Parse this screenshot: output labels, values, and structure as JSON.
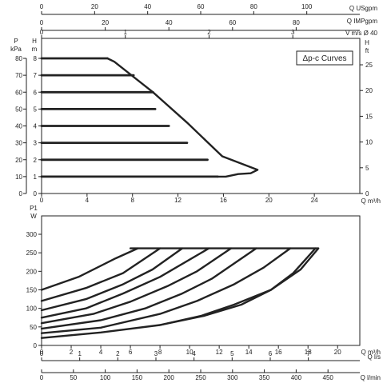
{
  "chart_data": [
    {
      "type": "line",
      "title": "",
      "legend_box": "Δp-c Curves",
      "legend_placement": "top-right",
      "grid": false,
      "x_primary": {
        "label": "Q m³/h",
        "range": [
          0,
          28
        ],
        "ticks": [
          0,
          4,
          8,
          12,
          16,
          20,
          24
        ]
      },
      "x_top_1": {
        "label": "Q USgpm",
        "range": [
          0,
          120
        ],
        "ticks": [
          0,
          20,
          40,
          60,
          80,
          100
        ]
      },
      "x_top_2": {
        "label": "Q IMPgpm",
        "range": [
          0,
          100
        ],
        "ticks": [
          0,
          20,
          40,
          60,
          80
        ]
      },
      "x_top_3": {
        "label": "V m/s Ø 40",
        "range": [
          0,
          3.8
        ],
        "ticks": [
          0,
          1,
          2,
          3
        ]
      },
      "y_left": {
        "label_top": "P",
        "label_unit": "kPa",
        "range": [
          0,
          80
        ],
        "ticks": [
          0,
          10,
          20,
          30,
          40,
          50,
          60,
          70,
          80
        ]
      },
      "y_mid": {
        "label": "H m",
        "range": [
          0,
          8
        ],
        "ticks": [
          0,
          1,
          2,
          3,
          4,
          5,
          6,
          7,
          8
        ]
      },
      "y_right": {
        "label": "H ft",
        "range": [
          0,
          26.2
        ],
        "ticks": [
          0,
          5,
          10,
          15,
          20,
          25
        ]
      },
      "series": [
        {
          "values": [
            [
              0,
              1
            ],
            [
              15.5,
              1
            ]
          ]
        },
        {
          "values": [
            [
              0,
              2
            ],
            [
              14.6,
              2
            ]
          ]
        },
        {
          "values": [
            [
              0,
              3
            ],
            [
              12.8,
              3
            ]
          ]
        },
        {
          "values": [
            [
              0,
              4
            ],
            [
              11.2,
              4
            ]
          ]
        },
        {
          "values": [
            [
              0,
              5
            ],
            [
              10,
              5
            ]
          ]
        },
        {
          "values": [
            [
              0,
              6
            ],
            [
              9.8,
              6
            ]
          ]
        },
        {
          "values": [
            [
              0,
              7
            ],
            [
              8.1,
              7
            ]
          ]
        },
        {
          "values": [
            [
              0,
              8
            ],
            [
              5.8,
              8
            ]
          ]
        }
      ],
      "max_curve": [
        [
          5.8,
          8
        ],
        [
          6.4,
          7.8
        ],
        [
          9.8,
          6
        ],
        [
          12.8,
          4.2
        ],
        [
          15.9,
          2.2
        ],
        [
          19.0,
          1.4
        ],
        [
          18.4,
          1.2
        ],
        [
          17.3,
          1.15
        ],
        [
          16.2,
          1.0
        ],
        [
          15.5,
          1
        ]
      ]
    },
    {
      "type": "line",
      "title": "",
      "grid": false,
      "x_primary": {
        "label": "Q m³/h",
        "range": [
          0,
          21.5
        ],
        "ticks": [
          0,
          2,
          4,
          6,
          8,
          10,
          12,
          14,
          16,
          18,
          20
        ]
      },
      "x_bottom_2": {
        "label": "Q l/s",
        "range": [
          0,
          8.35
        ],
        "ticks": [
          0,
          1,
          2,
          3,
          4,
          5,
          6,
          7
        ]
      },
      "x_bottom_3": {
        "label": "Q l/min",
        "range": [
          0,
          500
        ],
        "ticks": [
          0,
          50,
          100,
          150,
          200,
          250,
          300,
          350,
          400,
          450
        ]
      },
      "y_left": {
        "label": "P1 W",
        "range": [
          0,
          320
        ],
        "ticks": [
          0,
          50,
          100,
          150,
          200,
          250,
          300
        ]
      },
      "series": [
        {
          "values": [
            [
              0,
              20
            ],
            [
              4,
              35
            ],
            [
              8,
              55
            ],
            [
              11,
              80
            ],
            [
              13.5,
              110
            ],
            [
              15.5,
              150
            ],
            [
              17,
              195
            ],
            [
              18.5,
              262
            ]
          ]
        },
        {
          "values": [
            [
              0,
              33
            ],
            [
              4,
              48
            ],
            [
              8,
              85
            ],
            [
              10.5,
              120
            ],
            [
              13,
              165
            ],
            [
              15,
              210
            ],
            [
              16.8,
              262
            ]
          ]
        },
        {
          "values": [
            [
              0,
              45
            ],
            [
              4,
              68
            ],
            [
              7,
              100
            ],
            [
              9.5,
              140
            ],
            [
              11.5,
              180
            ],
            [
              14.5,
              262
            ]
          ]
        },
        {
          "values": [
            [
              0,
              60
            ],
            [
              3.5,
              85
            ],
            [
              6,
              118
            ],
            [
              8.5,
              160
            ],
            [
              10.5,
              200
            ],
            [
              12.8,
              262
            ]
          ]
        },
        {
          "values": [
            [
              0,
              75
            ],
            [
              3,
              100
            ],
            [
              5.5,
              140
            ],
            [
              8,
              185
            ],
            [
              11.3,
              262
            ]
          ]
        },
        {
          "values": [
            [
              0,
              95
            ],
            [
              3,
              125
            ],
            [
              5.5,
              165
            ],
            [
              7.5,
              205
            ],
            [
              9.5,
              262
            ]
          ]
        },
        {
          "values": [
            [
              0,
              120
            ],
            [
              3,
              155
            ],
            [
              5.5,
              195
            ],
            [
              8,
              262
            ]
          ]
        },
        {
          "values": [
            [
              0,
              150
            ],
            [
              2.5,
              185
            ],
            [
              5,
              235
            ],
            [
              6.5,
              262
            ]
          ]
        }
      ],
      "max_curve": [
        [
          6,
          262
        ],
        [
          18.7,
          262
        ],
        [
          17.5,
          205
        ],
        [
          15.5,
          150
        ],
        [
          13,
          110
        ],
        [
          10.8,
          80
        ],
        [
          8,
          55
        ]
      ]
    }
  ]
}
